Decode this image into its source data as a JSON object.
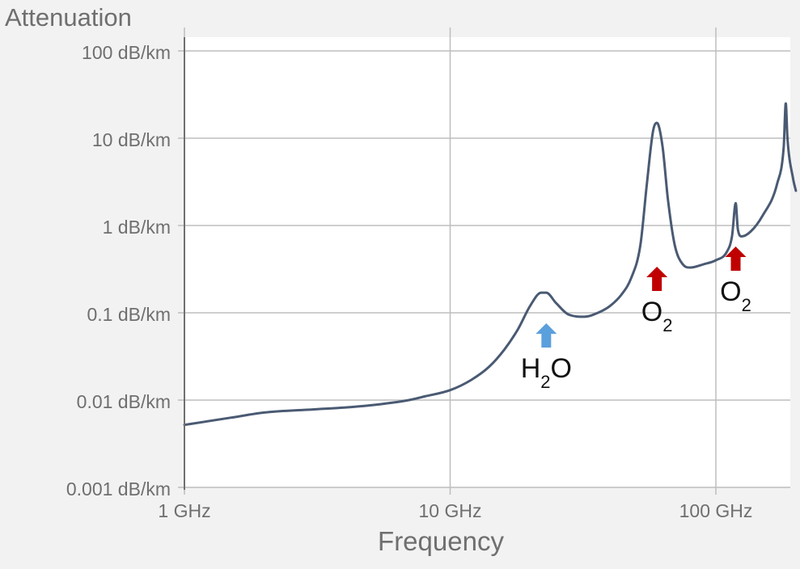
{
  "chart_data": {
    "type": "line",
    "ylabel": "Attenuation",
    "xlabel": "Frequency",
    "x_scale": "log",
    "y_scale": "log",
    "xlim": [
      1,
      200
    ],
    "ylim": [
      0.001,
      100
    ],
    "x_ticks": [
      {
        "value": 1,
        "label": "1 GHz"
      },
      {
        "value": 10,
        "label": "10 GHz"
      },
      {
        "value": 100,
        "label": "100 GHz"
      }
    ],
    "y_ticks": [
      {
        "value": 0.001,
        "label": "0.001 dB/km"
      },
      {
        "value": 0.01,
        "label": "0.01 dB/km"
      },
      {
        "value": 0.1,
        "label": "0.1 dB/km"
      },
      {
        "value": 1,
        "label": "1 dB/km"
      },
      {
        "value": 10,
        "label": "10 dB/km"
      },
      {
        "value": 100,
        "label": "100 dB/km"
      }
    ],
    "grid": true,
    "series": [
      {
        "color": "#4a5a73",
        "points": [
          [
            1,
            0.0052
          ],
          [
            1.5,
            0.0063
          ],
          [
            2,
            0.0072
          ],
          [
            3,
            0.0078
          ],
          [
            4,
            0.0082
          ],
          [
            5,
            0.0087
          ],
          [
            6,
            0.0093
          ],
          [
            7,
            0.01
          ],
          [
            8,
            0.011
          ],
          [
            10,
            0.013
          ],
          [
            12,
            0.017
          ],
          [
            14,
            0.024
          ],
          [
            16,
            0.038
          ],
          [
            18,
            0.065
          ],
          [
            20,
            0.12
          ],
          [
            22,
            0.17
          ],
          [
            23,
            0.17
          ],
          [
            25,
            0.13
          ],
          [
            28,
            0.095
          ],
          [
            32,
            0.09
          ],
          [
            36,
            0.1
          ],
          [
            40,
            0.12
          ],
          [
            44,
            0.16
          ],
          [
            48,
            0.25
          ],
          [
            52,
            0.6
          ],
          [
            55,
            3
          ],
          [
            58,
            12
          ],
          [
            60,
            15
          ],
          [
            63,
            8
          ],
          [
            66,
            2
          ],
          [
            70,
            0.6
          ],
          [
            75,
            0.36
          ],
          [
            80,
            0.33
          ],
          [
            90,
            0.36
          ],
          [
            100,
            0.4
          ],
          [
            110,
            0.5
          ],
          [
            115,
            0.75
          ],
          [
            118.75,
            1.8
          ],
          [
            121,
            0.9
          ],
          [
            125,
            0.75
          ],
          [
            135,
            0.85
          ],
          [
            150,
            1.3
          ],
          [
            170,
            3
          ],
          [
            180,
            8
          ],
          [
            183.3,
            25
          ],
          [
            186,
            10
          ],
          [
            195,
            3.5
          ],
          [
            200,
            2.5
          ]
        ]
      }
    ],
    "annotations": [
      {
        "label": "H",
        "sub": "2",
        "after": "O",
        "x": 23,
        "arrow_color": "#5aa0dc"
      },
      {
        "label": "O",
        "sub": "2",
        "after": "",
        "x": 60,
        "arrow_color": "#c00000"
      },
      {
        "label": "O",
        "sub": "2",
        "after": "",
        "x": 118.75,
        "arrow_color": "#c00000"
      }
    ]
  }
}
